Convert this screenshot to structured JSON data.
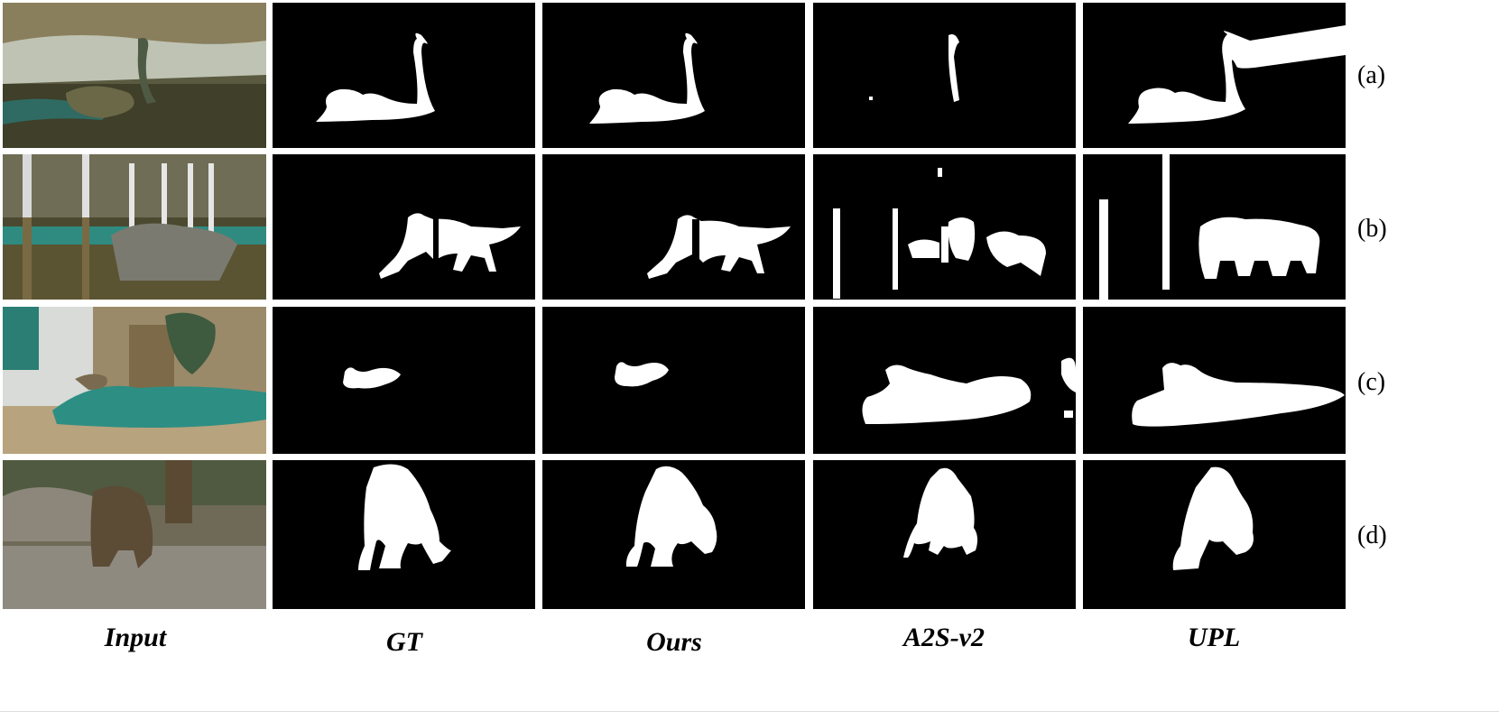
{
  "columns": [
    {
      "key": "input",
      "label": "Input"
    },
    {
      "key": "gt",
      "label": "GT"
    },
    {
      "key": "ours",
      "label": "Ours"
    },
    {
      "key": "a2s",
      "label": "A2S-v2"
    },
    {
      "key": "upl",
      "label": "UPL"
    }
  ],
  "rows": [
    {
      "label": "(a)",
      "subject": "swan"
    },
    {
      "label": "(b)",
      "subject": "dog jumping through poles"
    },
    {
      "label": "(c)",
      "subject": "rabbit on cushion"
    },
    {
      "label": "(d)",
      "subject": "bear"
    }
  ],
  "colors": {
    "mask_bg": "#000000",
    "mask_fg": "#ffffff",
    "background": "#ffffff"
  }
}
